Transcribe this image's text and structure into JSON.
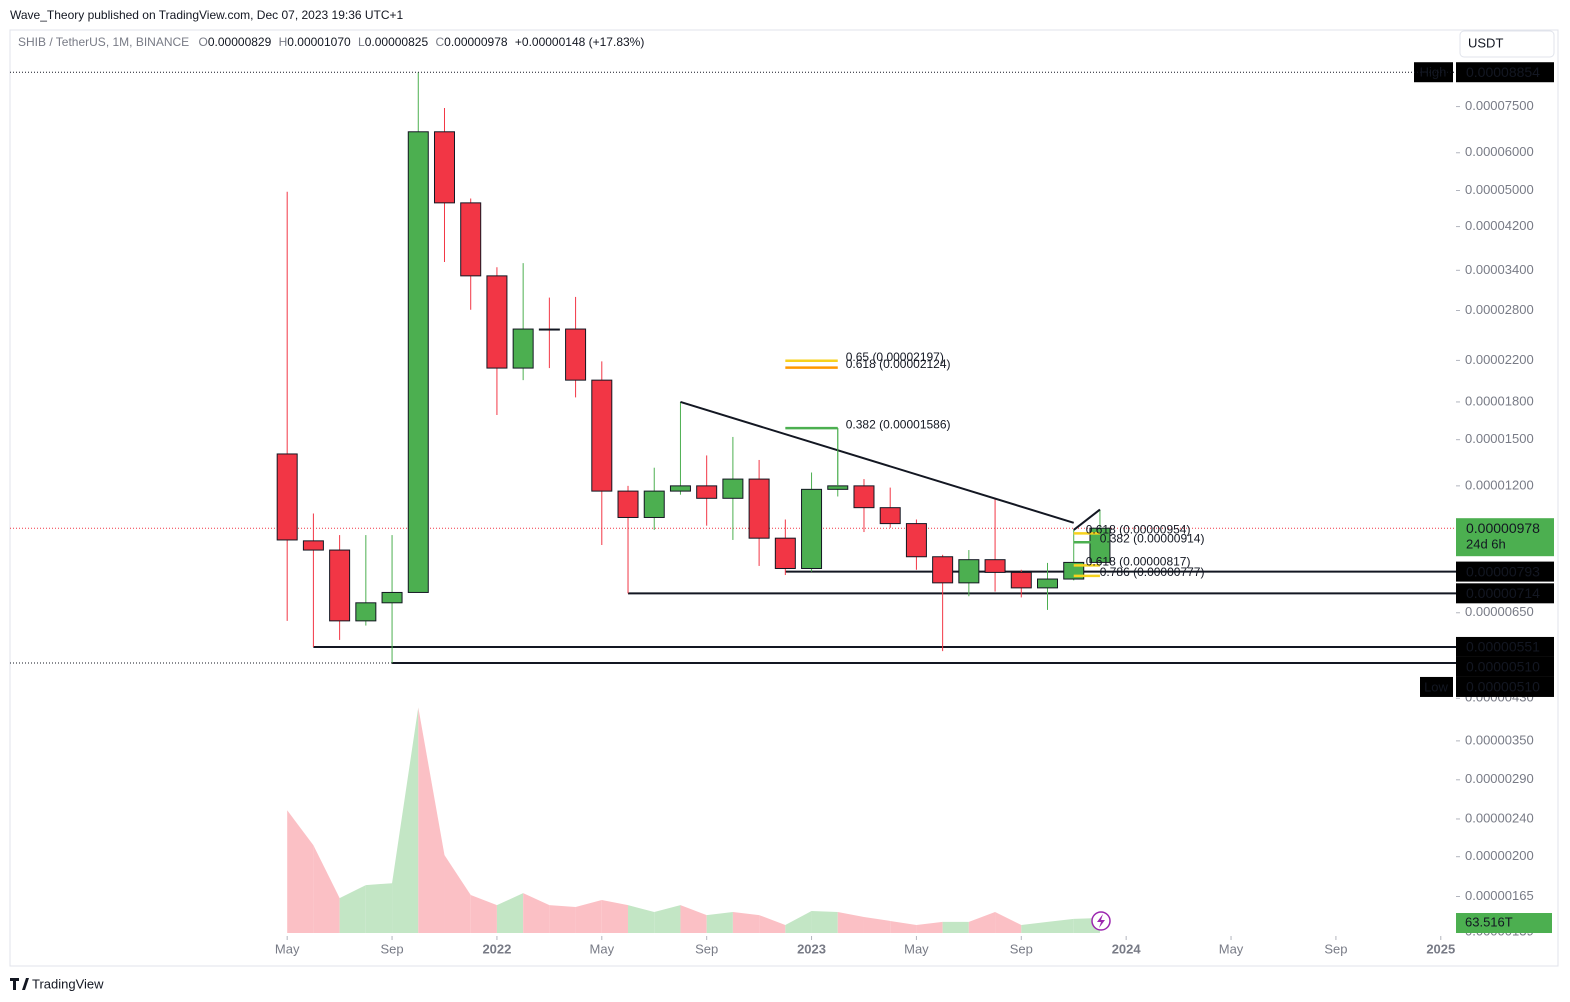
{
  "header": {
    "published": "Wave_Theory published on TradingView.com, Dec 07, 2023 19:36 UTC+1",
    "symbol": "SHIB / TetherUS, 1M, BINANCE",
    "o_key": "O",
    "o": "0.00000829",
    "h_key": "H",
    "h": "0.00001070",
    "l_key": "L",
    "l": "0.00000825",
    "c_key": "C",
    "c": "0.00000978",
    "change": "+0.00000148 (+17.83%)",
    "currency": "USDT",
    "brand": "TradingView"
  },
  "chart_data": {
    "type": "candlestick",
    "scale": "log",
    "grid": false,
    "up_color": "#4caf50",
    "down_color": "#f23645",
    "xlim": [
      "2020-07",
      "2025-02"
    ],
    "xticks": [
      {
        "value": "2021-05",
        "label": "May"
      },
      {
        "value": "2021-09",
        "label": "Sep"
      },
      {
        "value": "2022-01",
        "label": "2022"
      },
      {
        "value": "2022-05",
        "label": "May"
      },
      {
        "value": "2022-09",
        "label": "Sep"
      },
      {
        "value": "2023-01",
        "label": "2023"
      },
      {
        "value": "2023-05",
        "label": "May"
      },
      {
        "value": "2023-09",
        "label": "Sep"
      },
      {
        "value": "2024-01",
        "label": "2024"
      },
      {
        "value": "2024-05",
        "label": "May"
      },
      {
        "value": "2024-09",
        "label": "Sep"
      },
      {
        "value": "2025-01",
        "label": "2025"
      }
    ],
    "ylim": [
      1.37e-06,
      9.53e-05
    ],
    "yticks": [
      {
        "value": 7.5e-05,
        "label": "0.00007500"
      },
      {
        "value": 6e-05,
        "label": "0.00006000"
      },
      {
        "value": 5e-05,
        "label": "0.00005000"
      },
      {
        "value": 4.2e-05,
        "label": "0.00004200"
      },
      {
        "value": 3.4e-05,
        "label": "0.00003400"
      },
      {
        "value": 2.8e-05,
        "label": "0.00002800"
      },
      {
        "value": 2.2e-05,
        "label": "0.00002200"
      },
      {
        "value": 1.8e-05,
        "label": "0.00001800"
      },
      {
        "value": 1.5e-05,
        "label": "0.00001500"
      },
      {
        "value": 1.2e-05,
        "label": "0.00001200"
      },
      {
        "value": 6.5e-06,
        "label": "0.00000650"
      },
      {
        "value": 4.3e-06,
        "label": "0.00000430"
      },
      {
        "value": 3.5e-06,
        "label": "0.00000350"
      },
      {
        "value": 2.9e-06,
        "label": "0.00000290"
      },
      {
        "value": 2.4e-06,
        "label": "0.00000240"
      },
      {
        "value": 2e-06,
        "label": "0.00000200"
      },
      {
        "value": 1.65e-06,
        "label": "0.00000165"
      },
      {
        "value": 1.39e-06,
        "label": "0.00000139"
      }
    ],
    "x": [
      "2021-05",
      "2021-06",
      "2021-07",
      "2021-08",
      "2021-09",
      "2021-10",
      "2021-11",
      "2021-12",
      "2022-01",
      "2022-02",
      "2022-03",
      "2022-04",
      "2022-05",
      "2022-06",
      "2022-07",
      "2022-08",
      "2022-09",
      "2022-10",
      "2022-11",
      "2022-12",
      "2023-01",
      "2023-02",
      "2023-03",
      "2023-04",
      "2023-05",
      "2023-06",
      "2023-07",
      "2023-08",
      "2023-09",
      "2023-10",
      "2023-11",
      "2023-12"
    ],
    "open": [
      1.4e-05,
      9.2e-06,
      8.8e-06,
      6.25e-06,
      6.82e-06,
      7.17e-06,
      6.64e-05,
      4.71e-05,
      3.31e-05,
      2.12e-05,
      2.56e-05,
      2.56e-05,
      2e-05,
      1.17e-05,
      1.03e-05,
      1.17e-05,
      1.2e-05,
      1.13e-05,
      1.24e-05,
      9.32e-06,
      8.05e-06,
      1.18e-05,
      1.2e-05,
      1.08e-05,
      1e-05,
      8.52e-06,
      7.51e-06,
      8.4e-06,
      7.9e-06,
      7.33e-06,
      7.65e-06,
      8.29e-06
    ],
    "high": [
      4.97e-05,
      1.05e-05,
      9.46e-06,
      9.46e-06,
      9.46e-06,
      8.854e-05,
      7.45e-05,
      4.81e-05,
      3.45e-05,
      3.52e-05,
      2.98e-05,
      2.99e-05,
      2.19e-05,
      1.2e-05,
      1.31e-05,
      1.8e-05,
      1.39e-05,
      1.52e-05,
      1.36e-05,
      1.02e-05,
      1.28e-05,
      1.586e-05,
      1.24e-05,
      1.19e-05,
      1.02e-05,
      8.6e-06,
      8.8e-06,
      1.13e-05,
      8e-06,
      8.27e-06,
      9.7e-06,
      1.07e-05
    ],
    "low": [
      6.25e-06,
      5.51e-06,
      5.7e-06,
      6.11e-06,
      5.1e-06,
      7.17e-06,
      3.54e-05,
      2.81e-05,
      1.69e-05,
      2e-05,
      2.12e-05,
      1.84e-05,
      9.02e-06,
      7.14e-06,
      9.7e-06,
      1.15e-05,
      9.9e-06,
      9.24e-06,
      8.15e-06,
      7.8e-06,
      7.93e-06,
      1.14e-05,
      9.6e-06,
      9.8e-06,
      8e-06,
      5.4e-06,
      7.04e-06,
      7.2e-06,
      7e-06,
      6.59e-06,
      7.6e-06,
      8.25e-06
    ],
    "close": [
      9.24e-06,
      8.8e-06,
      6.25e-06,
      6.82e-06,
      7.17e-06,
      6.64e-05,
      4.71e-05,
      3.31e-05,
      2.12e-05,
      2.56e-05,
      2.55e-05,
      2e-05,
      1.17e-05,
      1.03e-05,
      1.17e-05,
      1.2e-05,
      1.13e-05,
      1.24e-05,
      9.32e-06,
      8.05e-06,
      1.18e-05,
      1.2e-05,
      1.08e-05,
      1e-05,
      8.52e-06,
      7.51e-06,
      8.4e-06,
      7.9e-06,
      7.33e-06,
      7.65e-06,
      8.29e-06,
      9.78e-06
    ],
    "volume": {
      "ylim": [
        0,
        1000
      ],
      "up_color": "#c3e6c5",
      "down_color": "#fbc0c5",
      "values": [
        520,
        372,
        148,
        203,
        211,
        956,
        330,
        161,
        118,
        169,
        118,
        110,
        140,
        118,
        89,
        118,
        76,
        89,
        76,
        34,
        93,
        89,
        68,
        51,
        34,
        47,
        47,
        89,
        34,
        47,
        60,
        63.516
      ],
      "value_labels": [
        null,
        null,
        null,
        null,
        null,
        null,
        null,
        null,
        null,
        null,
        null,
        null,
        null,
        null,
        null,
        null,
        null,
        null,
        null,
        null,
        null,
        null,
        null,
        null,
        null,
        null,
        null,
        null,
        null,
        null,
        null,
        "63.516T"
      ]
    },
    "high_mark": {
      "tag": "High",
      "value": 8.854e-05,
      "label": "0.00008854"
    },
    "low_mark": {
      "tag": "Low",
      "value": 5.1e-06,
      "label": "0.00000510"
    },
    "last_price": {
      "value": 9.78e-06,
      "label": "0.00000978",
      "countdown": "24d 6h"
    },
    "levels": [
      {
        "start": "2022-12",
        "value": 7.93e-06,
        "label": "0.00000793"
      },
      {
        "start": "2022-06",
        "value": 7.14e-06,
        "label": "0.00000714"
      },
      {
        "start": "2021-06",
        "value": 5.51e-06,
        "label": "0.00000551"
      },
      {
        "start": "2021-09",
        "value": 5.1e-06,
        "label": "0.00000510"
      }
    ],
    "trendlines": [
      {
        "x": [
          "2022-08",
          "2023-11"
        ],
        "values": [
          1.8e-05,
          1.004e-05
        ]
      },
      {
        "x": [
          "2023-11",
          "2023-12"
        ],
        "values": [
          9.7e-06,
          1.07e-05
        ]
      }
    ],
    "fibs": [
      {
        "x": [
          "2022-12",
          "2023-02"
        ],
        "levels": [
          {
            "value": 2.197e-05,
            "label": "0.65 (0.00002197)",
            "color": "#f7d21e"
          },
          {
            "value": 2.124e-05,
            "label": "0.618 (0.00002124)",
            "color": "#ff9800"
          },
          {
            "value": 1.586e-05,
            "label": "0.382 (0.00001586)",
            "color": "#4caf50"
          }
        ]
      },
      {
        "x": [
          "2023-11",
          "2023-12"
        ],
        "levels": [
          {
            "value": 9.54e-06,
            "label": "0.618 (0.00000954)",
            "color": "#f7d21e"
          },
          {
            "value": 9.14e-06,
            "label": "0.382 (0.00000914)",
            "color": "#4caf50"
          },
          {
            "value": 8.17e-06,
            "label": "0.618 (0.00000817)",
            "color": "#f7d21e"
          },
          {
            "value": 7.77e-06,
            "label": "0.786 (0.00000777)",
            "color": "#f7d21e"
          }
        ]
      }
    ]
  }
}
